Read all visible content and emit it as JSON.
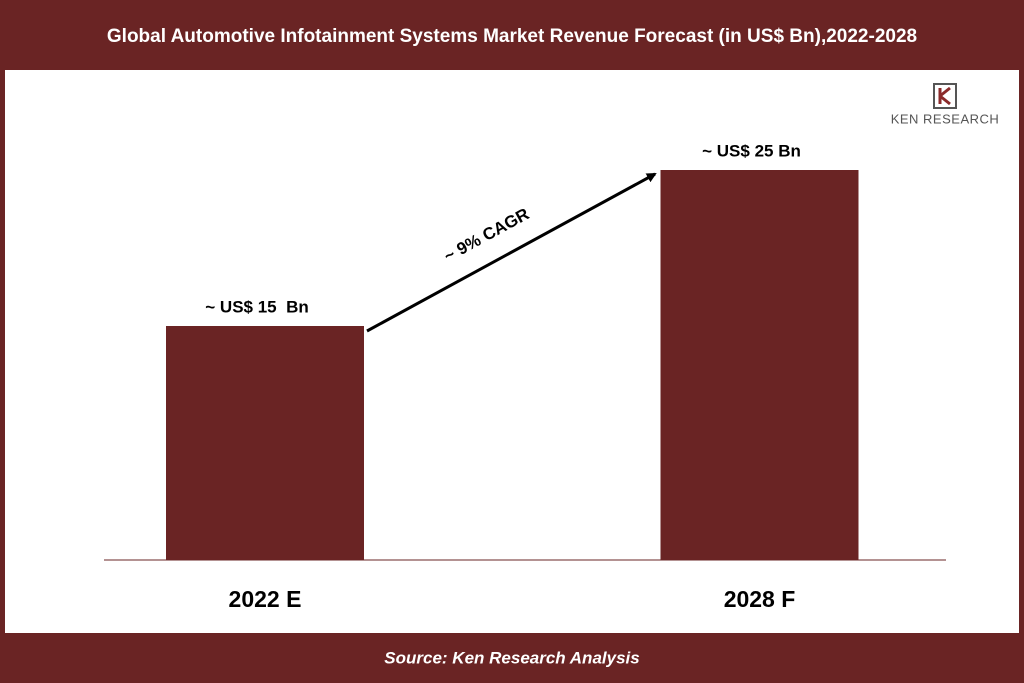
{
  "chart_data": {
    "type": "bar",
    "title": "Global Automotive Infotainment Systems Market Revenue Forecast (in US$ Bn),2022-2028",
    "categories": [
      "2022 E",
      "2028 F"
    ],
    "values": [
      15,
      25
    ],
    "value_labels": [
      "~ US$ 15  Bn",
      "~ US$ 25 Bn"
    ],
    "color": "#6a2424",
    "ylim": [
      0,
      30
    ],
    "annotation": "~ 9% CAGR",
    "logo": "KEN RESEARCH",
    "source": "Source: Ken Research Analysis"
  }
}
